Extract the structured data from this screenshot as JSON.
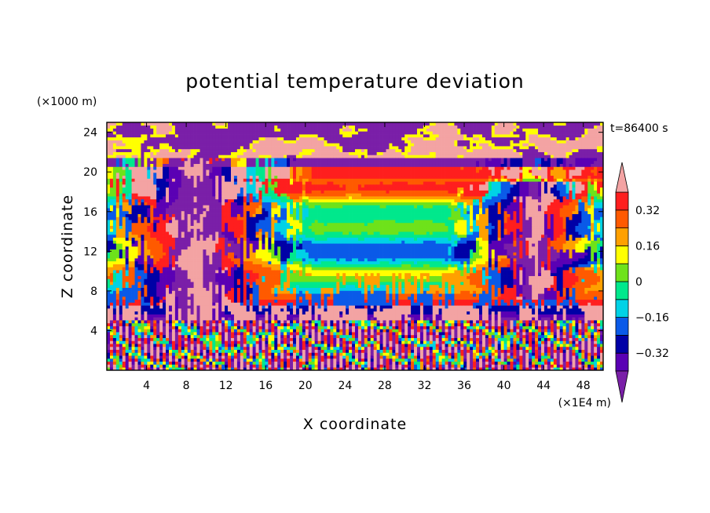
{
  "chart_data": {
    "type": "heatmap",
    "title": "potential temperature deviation",
    "xlabel": "X coordinate",
    "ylabel": "Z coordinate",
    "x_unit": "(×1E4 m)",
    "y_unit": "(×1000 m)",
    "time_label": "t=86400 s",
    "xlim": [
      0,
      50
    ],
    "ylim": [
      0,
      25
    ],
    "x_ticks": [
      4,
      8,
      12,
      16,
      20,
      24,
      28,
      32,
      36,
      40,
      44,
      48
    ],
    "y_ticks": [
      4,
      8,
      12,
      16,
      20,
      24
    ],
    "colorbar": {
      "levels": [
        -0.4,
        -0.32,
        -0.24,
        -0.16,
        -0.08,
        0,
        0.08,
        0.16,
        0.24,
        0.32,
        0.4
      ],
      "colors": [
        "#7a1fa8",
        "#5a00b4",
        "#0000a6",
        "#0a5ae8",
        "#00d2e6",
        "#00e88c",
        "#6ee21a",
        "#ffff00",
        "#ffa000",
        "#ff5a00",
        "#ff1e1e",
        "#f3a3a3"
      ],
      "labels": [
        "−0.32",
        "−0.16",
        "0",
        "0.16",
        "0.32"
      ],
      "label_values": [
        -0.32,
        -0.16,
        0,
        0.16,
        0.32
      ]
    }
  }
}
